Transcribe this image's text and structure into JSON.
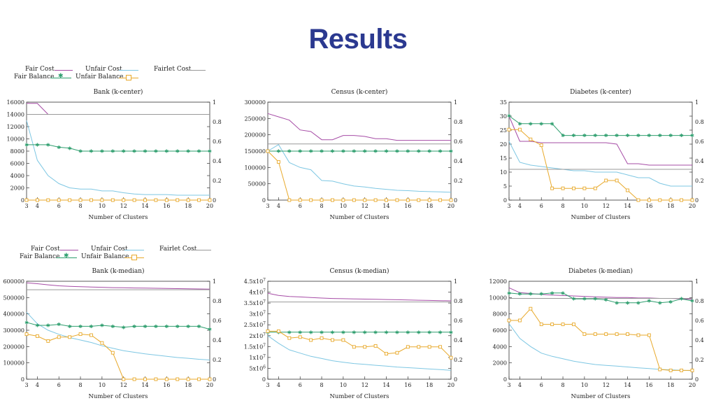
{
  "page": {
    "title": "Results"
  },
  "legend": {
    "fair_cost": "Fair Cost",
    "unfair_cost": "Unfair Cost",
    "fairlet_cost": "Fairlet Cost",
    "fair_balance": "Fair Balance",
    "unfair_balance": "Unfair Balance"
  },
  "colors": {
    "fair_cost": "#a64ca6",
    "unfair_cost": "#7ec7e3",
    "fairlet_cost": "#999999",
    "fair_balance": "#2e9e6e",
    "unfair_balance": "#e8a92b"
  },
  "chart_data": [
    {
      "type": "line",
      "title": "Bank (k-center)",
      "xlabel": "Number of Clusters",
      "x": [
        3,
        4,
        5,
        6,
        7,
        8,
        9,
        10,
        11,
        12,
        13,
        14,
        15,
        16,
        17,
        18,
        19,
        20
      ],
      "xticks": [
        "3",
        "4",
        "6",
        "8",
        "10",
        "12",
        "14",
        "16",
        "18",
        "20"
      ],
      "ylim": [
        0,
        16000
      ],
      "yticks": [
        "0",
        "2000",
        "4000",
        "6000",
        "8000",
        "10000",
        "12000",
        "14000",
        "16000"
      ],
      "y2lim": [
        0,
        1
      ],
      "y2ticks": [
        "0",
        "0.2",
        "0.4",
        "0.6",
        "0.8",
        "1"
      ],
      "series": [
        {
          "name": "Fair Cost",
          "axis": "left",
          "values": [
            15800,
            15800,
            14000,
            14000,
            14000,
            14000,
            14000,
            14000,
            14000,
            14000,
            14000,
            14000,
            14000,
            14000,
            14000,
            14000,
            14000,
            14000
          ]
        },
        {
          "name": "Unfair Cost",
          "axis": "left",
          "values": [
            13000,
            6500,
            4000,
            2700,
            2000,
            1800,
            1800,
            1500,
            1500,
            1200,
            1000,
            900,
            900,
            900,
            800,
            800,
            800,
            800
          ]
        },
        {
          "name": "Fairlet Cost",
          "axis": "left",
          "values": [
            14000,
            14000,
            14000,
            14000,
            14000,
            14000,
            14000,
            14000,
            14000,
            14000,
            14000,
            14000,
            14000,
            14000,
            14000,
            14000,
            14000,
            14000
          ]
        },
        {
          "name": "Fair Balance",
          "axis": "right",
          "values": [
            0.565,
            0.565,
            0.565,
            0.54,
            0.53,
            0.5,
            0.5,
            0.5,
            0.5,
            0.5,
            0.5,
            0.5,
            0.5,
            0.5,
            0.5,
            0.5,
            0.5,
            0.5
          ]
        },
        {
          "name": "Unfair Balance",
          "axis": "right",
          "values": [
            0,
            0,
            0,
            0,
            0,
            0,
            0,
            0,
            0,
            0,
            0,
            0,
            0,
            0,
            0,
            0,
            0,
            0
          ]
        }
      ]
    },
    {
      "type": "line",
      "title": "Census (k-center)",
      "xlabel": "Number of Clusters",
      "x": [
        3,
        4,
        5,
        6,
        7,
        8,
        9,
        10,
        11,
        12,
        13,
        14,
        15,
        16,
        17,
        18,
        19,
        20
      ],
      "xticks": [
        "3",
        "4",
        "6",
        "8",
        "10",
        "12",
        "14",
        "16",
        "18",
        "20"
      ],
      "ylim": [
        0,
        300000
      ],
      "yticks": [
        "0",
        "50000",
        "100000",
        "150000",
        "200000",
        "250000",
        "300000"
      ],
      "y2lim": [
        0,
        1
      ],
      "y2ticks": [
        "0",
        "0.2",
        "0.4",
        "0.6",
        "0.8",
        "1"
      ],
      "series": [
        {
          "name": "Fair Cost",
          "axis": "left",
          "values": [
            265000,
            255000,
            245000,
            215000,
            210000,
            185000,
            185000,
            198000,
            198000,
            195000,
            188000,
            188000,
            183000,
            183000,
            183000,
            183000,
            183000,
            183000
          ]
        },
        {
          "name": "Unfair Cost",
          "axis": "left",
          "values": [
            150000,
            170000,
            115000,
            100000,
            93000,
            60000,
            58000,
            50000,
            43000,
            40000,
            36000,
            33000,
            30000,
            29000,
            27000,
            26000,
            25000,
            24000
          ]
        },
        {
          "name": "Fairlet Cost",
          "axis": "left",
          "values": [
            172000,
            172000,
            172000,
            172000,
            172000,
            172000,
            172000,
            172000,
            172000,
            172000,
            172000,
            172000,
            172000,
            172000,
            172000,
            172000,
            172000,
            172000
          ]
        },
        {
          "name": "Fair Balance",
          "axis": "right",
          "values": [
            0.5,
            0.5,
            0.5,
            0.5,
            0.5,
            0.5,
            0.5,
            0.5,
            0.5,
            0.5,
            0.5,
            0.5,
            0.5,
            0.5,
            0.5,
            0.5,
            0.5,
            0.5
          ]
        },
        {
          "name": "Unfair Balance",
          "axis": "right",
          "values": [
            0.5,
            0.39,
            0,
            0,
            0,
            0,
            0,
            0,
            0,
            0,
            0,
            0,
            0,
            0,
            0,
            0,
            0,
            0
          ]
        }
      ]
    },
    {
      "type": "line",
      "title": "Diabetes (k-center)",
      "xlabel": "Number of Clusters",
      "x": [
        3,
        4,
        5,
        6,
        7,
        8,
        9,
        10,
        11,
        12,
        13,
        14,
        15,
        16,
        17,
        18,
        19,
        20
      ],
      "xticks": [
        "3",
        "4",
        "6",
        "8",
        "10",
        "12",
        "14",
        "16",
        "18",
        "20"
      ],
      "ylim": [
        0,
        35
      ],
      "yticks": [
        "0",
        "5",
        "10",
        "15",
        "20",
        "25",
        "30",
        "35"
      ],
      "y2lim": [
        0,
        1
      ],
      "y2ticks": [
        "0",
        "0.2",
        "0.4",
        "0.6",
        "0.8",
        "1"
      ],
      "series": [
        {
          "name": "Fair Cost",
          "axis": "left",
          "values": [
            30,
            21,
            21,
            20.5,
            20.5,
            20.5,
            20.5,
            20.5,
            20.5,
            20.5,
            20,
            13,
            13,
            12.5,
            12.5,
            12.5,
            12.5,
            12.5
          ]
        },
        {
          "name": "Unfair Cost",
          "axis": "left",
          "values": [
            21,
            13.5,
            12.5,
            12,
            11.5,
            11,
            10.5,
            10.5,
            10,
            10,
            10,
            9,
            8,
            8,
            6,
            5,
            5,
            5
          ]
        },
        {
          "name": "Fairlet Cost",
          "axis": "left",
          "values": [
            11,
            11,
            11,
            11,
            11,
            11,
            11,
            11,
            11,
            11,
            11,
            11,
            11,
            11,
            11,
            11,
            11,
            11
          ]
        },
        {
          "name": "Fair Balance",
          "axis": "right",
          "values": [
            0.86,
            0.78,
            0.78,
            0.78,
            0.78,
            0.66,
            0.66,
            0.66,
            0.66,
            0.66,
            0.66,
            0.66,
            0.66,
            0.66,
            0.66,
            0.66,
            0.66,
            0.66
          ]
        },
        {
          "name": "Unfair Balance",
          "axis": "right",
          "values": [
            0.72,
            0.72,
            0.62,
            0.56,
            0.12,
            0.12,
            0.12,
            0.12,
            0.12,
            0.2,
            0.2,
            0.1,
            0,
            0,
            0,
            0,
            0,
            0
          ]
        }
      ]
    },
    {
      "type": "line",
      "title": "Bank (k-median)",
      "xlabel": "Number of Clusters",
      "x": [
        3,
        4,
        5,
        6,
        7,
        8,
        9,
        10,
        11,
        12,
        13,
        14,
        15,
        16,
        17,
        18,
        19,
        20
      ],
      "xticks": [
        "3",
        "4",
        "6",
        "8",
        "10",
        "12",
        "14",
        "16",
        "18",
        "20"
      ],
      "ylim": [
        0,
        600000
      ],
      "yticks": [
        "0",
        "100000",
        "200000",
        "300000",
        "400000",
        "500000",
        "600000"
      ],
      "y2lim": [
        0,
        1
      ],
      "y2ticks": [
        "0",
        "0.2",
        "0.4",
        "0.6",
        "0.8",
        "1"
      ],
      "series": [
        {
          "name": "Fair Cost",
          "axis": "left",
          "values": [
            590000,
            585000,
            578000,
            572000,
            569000,
            567000,
            565000,
            563000,
            561000,
            560000,
            559000,
            558000,
            557000,
            556000,
            555000,
            554000,
            553000,
            552000
          ]
        },
        {
          "name": "Unfair Cost",
          "axis": "left",
          "values": [
            410000,
            340000,
            300000,
            275000,
            255000,
            240000,
            225000,
            205000,
            190000,
            175000,
            165000,
            155000,
            148000,
            140000,
            133000,
            128000,
            122000,
            118000
          ]
        },
        {
          "name": "Fairlet Cost",
          "axis": "left",
          "values": [
            548000,
            548000,
            548000,
            548000,
            548000,
            548000,
            548000,
            548000,
            548000,
            548000,
            548000,
            548000,
            548000,
            548000,
            548000,
            548000,
            548000,
            548000
          ]
        },
        {
          "name": "Fair Balance",
          "axis": "right",
          "values": [
            0.58,
            0.55,
            0.55,
            0.56,
            0.54,
            0.54,
            0.54,
            0.55,
            0.54,
            0.53,
            0.54,
            0.54,
            0.54,
            0.54,
            0.54,
            0.54,
            0.54,
            0.51
          ]
        },
        {
          "name": "Unfair Balance",
          "axis": "right",
          "values": [
            0.46,
            0.44,
            0.39,
            0.43,
            0.43,
            0.46,
            0.45,
            0.37,
            0.27,
            0,
            0,
            0,
            0,
            0,
            0,
            0,
            0,
            0
          ]
        }
      ]
    },
    {
      "type": "line",
      "title": "Census (k-median)",
      "xlabel": "Number of Clusters",
      "x": [
        3,
        4,
        5,
        6,
        7,
        8,
        9,
        10,
        11,
        12,
        13,
        14,
        15,
        16,
        17,
        18,
        19,
        20
      ],
      "xticks": [
        "3",
        "4",
        "6",
        "8",
        "10",
        "12",
        "14",
        "16",
        "18",
        "20"
      ],
      "ylim": [
        0,
        45000000
      ],
      "yticks": [
        "0",
        "5x10^6",
        "1x10^7",
        "1.5x10^7",
        "2x10^7",
        "2.5x10^7",
        "3x10^7",
        "3.5x10^7",
        "4x10^7",
        "4.5x10^7"
      ],
      "y2lim": [
        0,
        1
      ],
      "y2ticks": [
        "0",
        "0.2",
        "0.4",
        "0.6",
        "0.8",
        "1"
      ],
      "series": [
        {
          "name": "Fair Cost",
          "axis": "left",
          "values": [
            39500000,
            38500000,
            38000000,
            37800000,
            37500000,
            37300000,
            37100000,
            37000000,
            36900000,
            36800000,
            36700000,
            36600000,
            36500000,
            36400000,
            36300000,
            36200000,
            36100000,
            36000000
          ]
        },
        {
          "name": "Unfair Cost",
          "axis": "left",
          "values": [
            20000000,
            16500000,
            13500000,
            12000000,
            10500000,
            9500000,
            8500000,
            7800000,
            7200000,
            6800000,
            6400000,
            6000000,
            5600000,
            5300000,
            5000000,
            4700000,
            4400000,
            4100000
          ]
        },
        {
          "name": "Fairlet Cost",
          "axis": "left",
          "values": [
            35500000,
            35500000,
            35500000,
            35500000,
            35500000,
            35500000,
            35500000,
            35500000,
            35500000,
            35500000,
            35500000,
            35500000,
            35500000,
            35500000,
            35500000,
            35500000,
            35500000,
            35500000
          ]
        },
        {
          "name": "Fair Balance",
          "axis": "right",
          "values": [
            0.48,
            0.48,
            0.48,
            0.48,
            0.48,
            0.48,
            0.48,
            0.48,
            0.48,
            0.48,
            0.48,
            0.48,
            0.48,
            0.48,
            0.48,
            0.48,
            0.48,
            0.48
          ]
        },
        {
          "name": "Unfair Balance",
          "axis": "right",
          "values": [
            0.49,
            0.49,
            0.42,
            0.43,
            0.4,
            0.42,
            0.4,
            0.4,
            0.33,
            0.33,
            0.34,
            0.26,
            0.27,
            0.33,
            0.33,
            0.33,
            0.33,
            0.22
          ]
        }
      ]
    },
    {
      "type": "line",
      "title": "Diabetes (k-median)",
      "xlabel": "Number of Clusters",
      "x": [
        3,
        4,
        5,
        6,
        7,
        8,
        9,
        10,
        11,
        12,
        13,
        14,
        15,
        16,
        17,
        18,
        19,
        20
      ],
      "xticks": [
        "3",
        "4",
        "6",
        "8",
        "10",
        "12",
        "14",
        "16",
        "18",
        "20"
      ],
      "ylim": [
        0,
        12000
      ],
      "yticks": [
        "0",
        "2000",
        "4000",
        "6000",
        "8000",
        "10000",
        "12000"
      ],
      "y2lim": [
        0,
        1
      ],
      "y2ticks": [
        "0",
        "0.2",
        "0.4",
        "0.6",
        "0.8",
        "1"
      ],
      "series": [
        {
          "name": "Fair Cost",
          "axis": "left",
          "values": [
            11200,
            10600,
            10500,
            10400,
            10300,
            10250,
            10200,
            10150,
            10100,
            10050,
            10000,
            10000,
            9950,
            9950,
            9900,
            9900,
            9850,
            9800
          ]
        },
        {
          "name": "Unfair Cost",
          "axis": "left",
          "values": [
            6800,
            5000,
            4000,
            3200,
            2800,
            2500,
            2200,
            2000,
            1800,
            1700,
            1600,
            1500,
            1400,
            1300,
            1200,
            1150,
            1100,
            1050
          ]
        },
        {
          "name": "Fairlet Cost",
          "axis": "left",
          "values": [
            9900,
            9900,
            9900,
            9900,
            9900,
            9900,
            9900,
            9900,
            9900,
            9900,
            9900,
            9900,
            9900,
            9900,
            9900,
            9900,
            9900,
            9900
          ]
        },
        {
          "name": "Fair Balance",
          "axis": "right",
          "values": [
            0.88,
            0.87,
            0.87,
            0.87,
            0.88,
            0.88,
            0.82,
            0.82,
            0.82,
            0.81,
            0.78,
            0.78,
            0.78,
            0.8,
            0.78,
            0.79,
            0.82,
            0.8
          ]
        },
        {
          "name": "Unfair Balance",
          "axis": "right",
          "values": [
            0.6,
            0.6,
            0.72,
            0.56,
            0.56,
            0.56,
            0.56,
            0.46,
            0.46,
            0.46,
            0.46,
            0.46,
            0.45,
            0.45,
            0.1,
            0.09,
            0.09,
            0.09
          ]
        }
      ]
    }
  ]
}
